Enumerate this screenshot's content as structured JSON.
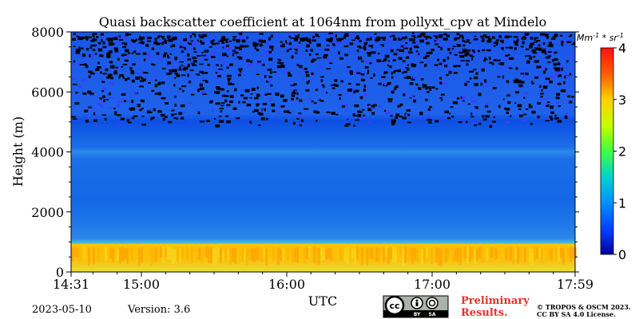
{
  "chart_data": {
    "type": "heatmap",
    "title": "Quasi backscatter coefficient at 1064nm from pollyxt_cpv at Mindelo",
    "ylabel": "Height (m)",
    "xlabel": "UTC",
    "xlim": [
      "14:31",
      "17:59"
    ],
    "ylim": [
      0,
      8000
    ],
    "x_ticks": [
      "14:31",
      "15:00",
      "16:00",
      "17:00",
      "17:59"
    ],
    "y_ticks": [
      0,
      2000,
      4000,
      6000,
      8000
    ],
    "colorbar": {
      "label": "Mm^-1 * sr^-1",
      "range": [
        0,
        4
      ],
      "ticks": [
        0,
        1,
        2,
        3,
        4
      ],
      "colormap": "jet"
    },
    "layers": [
      {
        "height_range": [
          0,
          900
        ],
        "value_approx": 2.6
      },
      {
        "height_range": [
          900,
          5000
        ],
        "value_approx": 0.6
      },
      {
        "height_range": [
          5000,
          8000
        ],
        "value_approx": 0.3
      }
    ]
  },
  "footer": {
    "date": "2023-05-10",
    "version": "Version: 3.6",
    "preliminary_line1": "Preliminary",
    "preliminary_line2": "Results.",
    "copyright_line1": "© TROPOS & OSCM 2023.",
    "copyright_line2": "CC BY SA 4.0 License."
  },
  "license_badge": {
    "left": "cc",
    "by": "BY",
    "sa": "SA"
  }
}
